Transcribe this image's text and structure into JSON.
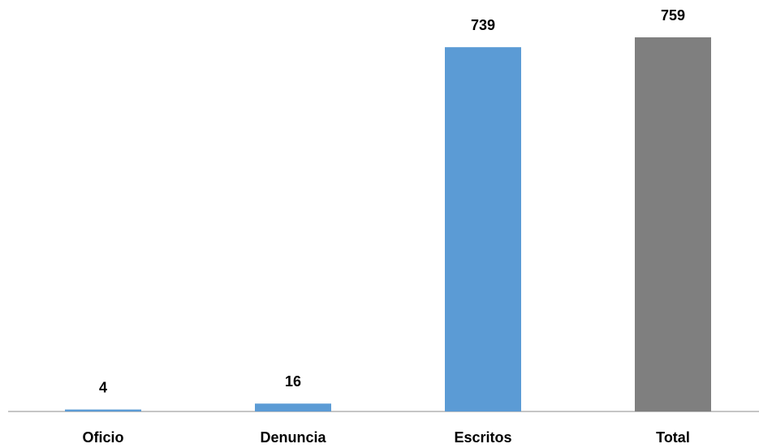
{
  "chart_data": {
    "type": "bar",
    "categories": [
      "Oficio",
      "Denuncia",
      "Escritos",
      "Total"
    ],
    "values": [
      4,
      16,
      739,
      759
    ],
    "colors": [
      "#5b9bd5",
      "#5b9bd5",
      "#5b9bd5",
      "#7f7f7f"
    ]
  }
}
